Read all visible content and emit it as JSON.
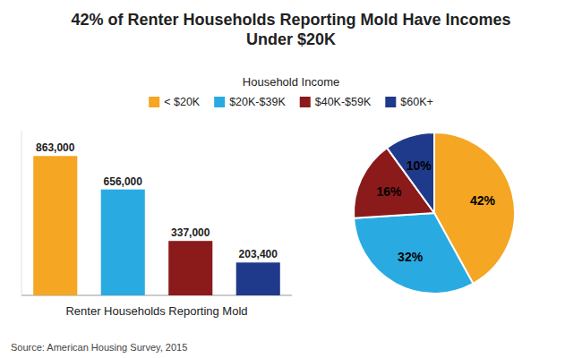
{
  "chart_data": [
    {
      "type": "bar",
      "title": "42% of Renter Households Reporting Mold Have Incomes\nUnder $20K",
      "subtitle": "Household Income",
      "xlabel": "Renter Households Reporting Mold",
      "categories": [
        "< $20K",
        "$20K-$39K",
        "$40K-$59K",
        "$60K+"
      ],
      "values": [
        863000,
        656000,
        337000,
        203400
      ],
      "value_labels": [
        "863,000",
        "656,000",
        "337,000",
        "203,400"
      ],
      "colors": [
        "#F5A623",
        "#29ABE2",
        "#8B1A1A",
        "#1F3A8A"
      ],
      "ylim": [
        0,
        1020000
      ],
      "tick_labels": false,
      "grid": false,
      "legend": "top",
      "data_labels": true,
      "annotations": [
        "Source: American Housing Survey, 2015"
      ]
    },
    {
      "type": "pie",
      "values": [
        42,
        32,
        16,
        10
      ],
      "value_labels": [
        "42%",
        "32%",
        "16%",
        "10%"
      ],
      "colors": [
        "#F5A623",
        "#29ABE2",
        "#8B1A1A",
        "#1F3A8A"
      ],
      "data_labels": true
    }
  ]
}
